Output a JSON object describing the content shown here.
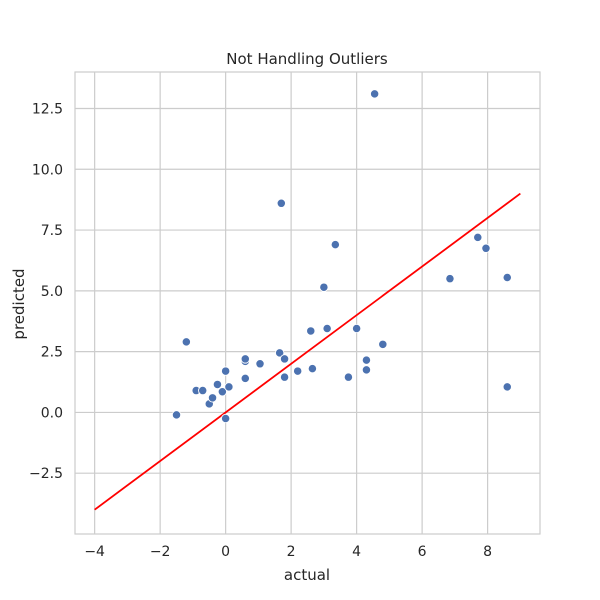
{
  "chart_data": {
    "type": "scatter",
    "title": "Not Handling Outliers",
    "xlabel": "actual",
    "ylabel": "predicted",
    "xlim": [
      -4.6,
      9.6
    ],
    "ylim": [
      -5.0,
      14.0
    ],
    "xticks": [
      -4,
      -2,
      0,
      2,
      4,
      6,
      8
    ],
    "xtick_labels": [
      "−4",
      "−2",
      "0",
      "2",
      "4",
      "6",
      "8"
    ],
    "yticks": [
      -2.5,
      0.0,
      2.5,
      5.0,
      7.5,
      10.0,
      12.5
    ],
    "ytick_labels": [
      "−2.5",
      "0.0",
      "2.5",
      "5.0",
      "7.5",
      "10.0",
      "12.5"
    ],
    "grid": true,
    "colors": {
      "points": "#4c72b0",
      "point_edge": "#ffffff",
      "line": "#ff0000",
      "grid": "#cccccc",
      "frame": "#cccccc"
    },
    "series": [
      {
        "type": "scatter",
        "points": [
          [
            -1.5,
            -0.1
          ],
          [
            -1.2,
            2.9
          ],
          [
            -0.9,
            0.9
          ],
          [
            -0.7,
            0.9
          ],
          [
            -0.5,
            0.35
          ],
          [
            -0.4,
            0.6
          ],
          [
            -0.25,
            1.15
          ],
          [
            -0.1,
            0.85
          ],
          [
            0.0,
            1.7
          ],
          [
            0.1,
            1.05
          ],
          [
            0.0,
            -0.25
          ],
          [
            0.6,
            2.1
          ],
          [
            0.6,
            2.2
          ],
          [
            0.6,
            1.4
          ],
          [
            1.05,
            2.0
          ],
          [
            1.65,
            2.45
          ],
          [
            1.7,
            8.6
          ],
          [
            1.8,
            1.45
          ],
          [
            1.8,
            2.2
          ],
          [
            2.2,
            1.7
          ],
          [
            2.6,
            3.35
          ],
          [
            2.65,
            1.8
          ],
          [
            3.0,
            5.15
          ],
          [
            3.1,
            3.45
          ],
          [
            3.35,
            6.9
          ],
          [
            3.75,
            1.45
          ],
          [
            4.0,
            3.45
          ],
          [
            4.3,
            2.15
          ],
          [
            4.3,
            1.75
          ],
          [
            4.55,
            13.1
          ],
          [
            4.8,
            2.8
          ],
          [
            6.85,
            5.5
          ],
          [
            7.7,
            7.2
          ],
          [
            7.95,
            6.75
          ],
          [
            8.6,
            5.55
          ],
          [
            8.6,
            1.05
          ]
        ]
      },
      {
        "type": "line",
        "points": [
          [
            -4,
            -4
          ],
          [
            9,
            9
          ]
        ]
      }
    ]
  }
}
